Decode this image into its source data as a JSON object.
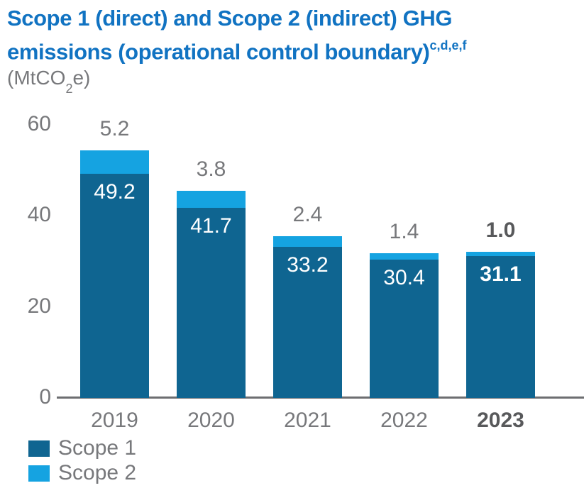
{
  "title": {
    "line1": "Scope 1 (direct) and Scope 2 (indirect) GHG",
    "line2": "emissions (operational control boundary)",
    "superscript": "c,d,e,f"
  },
  "units": {
    "prefix": "(MtCO",
    "sub": "2",
    "suffix": "e)"
  },
  "colors": {
    "title_blue": "#1173C2",
    "scope1": "#0F6591",
    "scope2": "#15A3E1",
    "label_gray": "#77787B",
    "label_dark_bold": "#58595B",
    "axis_line": "#6D6E71",
    "inside_label_white": "#FFFFFF"
  },
  "chart_data": {
    "type": "bar",
    "stacked": true,
    "title": "Scope 1 (direct) and Scope 2 (indirect) GHG emissions (operational control boundary)",
    "title_footnotes": "c,d,e,f",
    "unit_label": "MtCO2e",
    "categories": [
      "2019",
      "2020",
      "2021",
      "2022",
      "2023"
    ],
    "series": [
      {
        "name": "Scope 1",
        "color_key": "scope1",
        "values": [
          49.2,
          41.7,
          33.2,
          30.4,
          31.1
        ]
      },
      {
        "name": "Scope 2",
        "color_key": "scope2",
        "values": [
          5.2,
          3.8,
          2.4,
          1.4,
          1.0
        ]
      }
    ],
    "data_labels": {
      "scope1_inside_bar": [
        "49.2",
        "41.7",
        "33.2",
        "30.4",
        "31.1"
      ],
      "scope2_above_bar": [
        "5.2",
        "3.8",
        "2.4",
        "1.4",
        "1.0"
      ]
    },
    "xlabel": "",
    "ylabel": "MtCO2e",
    "ylim": [
      0,
      60
    ],
    "yticks": [
      0,
      20,
      40,
      60
    ],
    "grid": false,
    "legend_position": "bottom-left",
    "highlight_category": "2023"
  },
  "legend": {
    "items": [
      {
        "label": "Scope 1",
        "color_key": "scope1"
      },
      {
        "label": "Scope 2",
        "color_key": "scope2"
      }
    ]
  }
}
